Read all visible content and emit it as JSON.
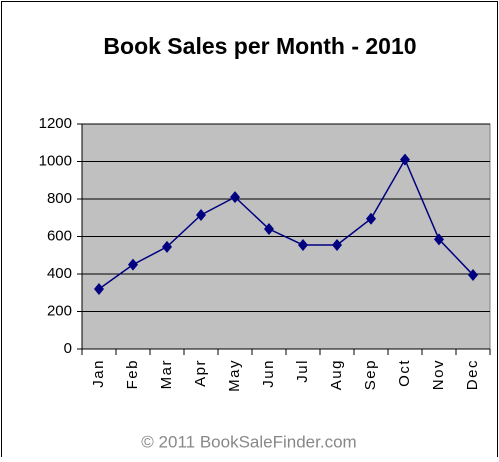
{
  "chart_data": {
    "type": "line",
    "title": "Book Sales per Month - 2010",
    "categories": [
      "Jan",
      "Feb",
      "Mar",
      "Apr",
      "May",
      "Jun",
      "Jul",
      "Aug",
      "Sep",
      "Oct",
      "Nov",
      "Dec"
    ],
    "series": [
      {
        "name": "Book Sales",
        "color": "#000080",
        "values": [
          320,
          450,
          545,
          715,
          810,
          640,
          555,
          555,
          695,
          1010,
          585,
          395
        ]
      }
    ],
    "ylim": [
      0,
      1200
    ],
    "yticks": [
      0,
      200,
      400,
      600,
      800,
      1000,
      1200
    ],
    "grid": true,
    "footer": "© 2011 BookSaleFinder.com"
  }
}
